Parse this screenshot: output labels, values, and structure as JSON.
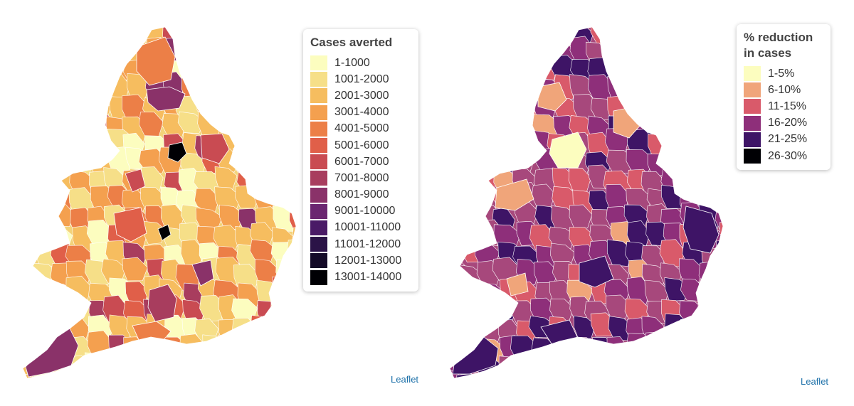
{
  "maps": [
    {
      "id": "left",
      "legend": {
        "title": [
          "Cases averted"
        ],
        "items": [
          {
            "label": "1-1000",
            "color": "#fcfdbf"
          },
          {
            "label": "1001-2000",
            "color": "#f6df88"
          },
          {
            "label": "2001-3000",
            "color": "#f6bd5f"
          },
          {
            "label": "3001-4000",
            "color": "#f4a04f"
          },
          {
            "label": "4001-5000",
            "color": "#ec7f47"
          },
          {
            "label": "5001-6000",
            "color": "#e05f49"
          },
          {
            "label": "6001-7000",
            "color": "#c94b52"
          },
          {
            "label": "7001-8000",
            "color": "#a83d5e"
          },
          {
            "label": "8001-9000",
            "color": "#8a3269"
          },
          {
            "label": "9001-10000",
            "color": "#6b2670"
          },
          {
            "label": "10001-11000",
            "color": "#4a1a66"
          },
          {
            "label": "11001-12000",
            "color": "#2b1347"
          },
          {
            "label": "12001-13000",
            "color": "#140b28"
          },
          {
            "label": "13001-14000",
            "color": "#000004"
          }
        ]
      },
      "attribution": "Leaflet",
      "base_color": "#f3d37a",
      "region_colors": [
        "#fcfdbf",
        "#f6df88",
        "#f6bd5f",
        "#f4a04f",
        "#f6df88",
        "#f6bd5f",
        "#ec7f47",
        "#f6df88",
        "#fcfdbf",
        "#f6bd5f",
        "#c94b52",
        "#f6df88",
        "#f4a04f",
        "#f6bd5f",
        "#8a3269",
        "#f6df88",
        "#f6bd5f",
        "#f4a04f",
        "#fcfdbf",
        "#f6bd5f",
        "#e05f49",
        "#f6df88",
        "#f6bd5f",
        "#a83d5e",
        "#f4a04f",
        "#f6df88",
        "#f6bd5f",
        "#ec7f47"
      ]
    },
    {
      "id": "right",
      "legend": {
        "title": [
          "% reduction",
          "in cases"
        ],
        "items": [
          {
            "label": "1-5%",
            "color": "#fcfdbf"
          },
          {
            "label": "6-10%",
            "color": "#f0a57a"
          },
          {
            "label": "11-15%",
            "color": "#d95a6a"
          },
          {
            "label": "16-20%",
            "color": "#8e2f7a"
          },
          {
            "label": "21-25%",
            "color": "#3e1466"
          },
          {
            "label": "26-30%",
            "color": "#000004"
          }
        ]
      },
      "attribution": "Leaflet",
      "base_color": "#a7487c",
      "region_colors": [
        "#d95a6a",
        "#8e2f7a",
        "#a7487c",
        "#3e1466",
        "#d95a6a",
        "#8e2f7a",
        "#f0a57a",
        "#a7487c",
        "#3e1466",
        "#8e2f7a",
        "#d95a6a",
        "#a7487c",
        "#3e1466",
        "#8e2f7a",
        "#d95a6a",
        "#a7487c",
        "#8e2f7a",
        "#3e1466",
        "#a7487c",
        "#d95a6a",
        "#8e2f7a",
        "#3e1466",
        "#a7487c",
        "#8e2f7a",
        "#d95a6a",
        "#3e1466",
        "#a7487c",
        "#8e2f7a"
      ]
    }
  ]
}
